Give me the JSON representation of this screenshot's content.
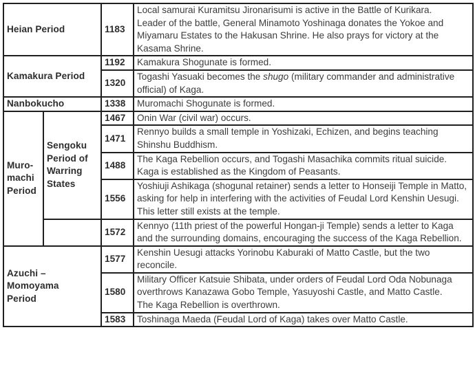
{
  "page": {
    "kind": "historical-timeline-table",
    "background_color": "#ffffff",
    "border_color": "#1f1f1f",
    "text_color": "#3c3c3c",
    "heading_text_color": "#2d2d2d"
  },
  "table": {
    "columns": [
      "period",
      "sub_period",
      "year",
      "event"
    ],
    "rows": [
      {
        "year": "1183",
        "period_cells": [
          {
            "name": "period-cell-heian",
            "label": "Heian Period",
            "rowspan": 1,
            "colspan": 2
          }
        ],
        "event": [
          [
            "Local samurai Kuramitsu Jironarisumi is active in the Battle of Kurikara."
          ],
          [
            "Leader of the battle, General Minamoto Yoshinaga donates the Yokoe and Miyamaru Estates to the Hakusan Shrine. He also prays for victory at the Kasama Shrine."
          ]
        ]
      },
      {
        "year": "1192",
        "period_cells": [
          {
            "name": "period-cell-kamakura",
            "label": "Kamakura Period",
            "rowspan": 2,
            "colspan": 2
          }
        ],
        "event": [
          [
            "Kamakura Shogunate is formed."
          ]
        ]
      },
      {
        "year": "1320",
        "period_cells": [],
        "event": [
          [
            "Togashi Yasuaki becomes the ",
            {
              "text": "shugo",
              "italic": true
            },
            " (military commander and administrative official) of Kaga."
          ]
        ]
      },
      {
        "year": "1338",
        "period_cells": [
          {
            "name": "period-cell-nanbokucho",
            "label": "Nanbokucho",
            "rowspan": 1,
            "colspan": 2
          }
        ],
        "event": [
          [
            "Muromachi Shogunate is formed."
          ]
        ]
      },
      {
        "year": "1467",
        "period_cells": [
          {
            "name": "period-cell-muromachi",
            "label": "Muro-\nmachi\nPeriod",
            "rowspan": 5,
            "colspan": 1
          },
          {
            "name": "subperiod-cell-sengoku",
            "label": "Sengoku\nPeriod of\nWarring\nStates",
            "rowspan": 4,
            "colspan": 1
          }
        ],
        "event": [
          [
            "Onin War (civil war) occurs."
          ]
        ]
      },
      {
        "year": "1471",
        "period_cells": [],
        "event": [
          [
            "Rennyo builds a small temple in Yoshizaki, Echizen, and begins teaching Shinshu Buddhism."
          ]
        ]
      },
      {
        "year": "1488",
        "period_cells": [],
        "event": [
          [
            "The Kaga Rebellion occurs, and Togashi Masachika commits ritual suicide."
          ],
          [
            "Kaga is established as the Kingdom of Peasants."
          ]
        ]
      },
      {
        "year": "1556",
        "period_cells": [],
        "event": [
          [
            "Yoshiuji Ashikaga (shogunal retainer) sends a letter to Honseiji Temple in Matto, asking for help in interfering with the activities of Feudal Lord Kenshin Uesugi. This letter still exists at the temple."
          ]
        ]
      },
      {
        "year": "1572",
        "period_cells": [
          {
            "name": "subperiod-cell-empty",
            "label": "",
            "rowspan": 1,
            "colspan": 1
          }
        ],
        "event": [
          [
            "Kennyo (11th priest of the powerful Hongan-ji Temple) sends a letter to Kaga and the surrounding domains, encouraging the success of the Kaga Rebellion."
          ]
        ]
      },
      {
        "year": "1577",
        "period_cells": [
          {
            "name": "period-cell-azuchi-momoyama",
            "label": "Azuchi –\nMomoyama\nPeriod",
            "rowspan": 3,
            "colspan": 2
          }
        ],
        "event": [
          [
            "Kenshin Uesugi attacks Yorinobu Kaburaki of Matto Castle, but the two reconcile."
          ]
        ]
      },
      {
        "year": "1580",
        "period_cells": [],
        "event": [
          [
            "Military Officer Katsuie Shibata, under orders of Feudal Lord Oda Nobunaga overthrows Kanazawa Gobo Temple, Yasuyoshi Castle, and Matto Castle."
          ],
          [
            "The Kaga Rebellion is overthrown."
          ]
        ]
      },
      {
        "year": "1583",
        "period_cells": [],
        "event": [
          [
            "Toshinaga Maeda (Feudal Lord of Kaga) takes over Matto Castle."
          ]
        ]
      }
    ]
  }
}
